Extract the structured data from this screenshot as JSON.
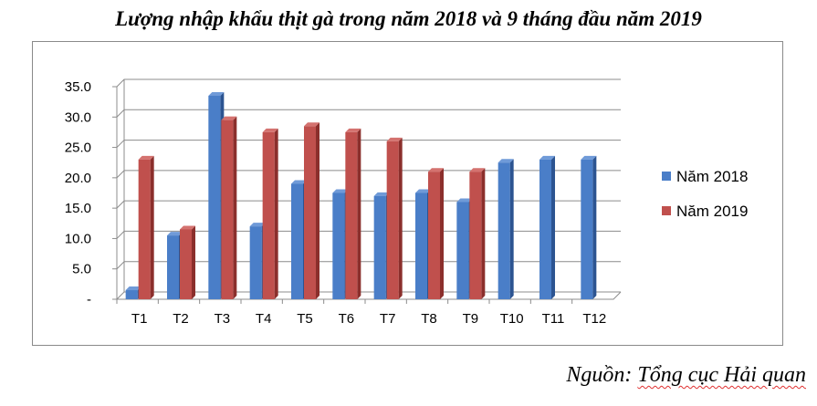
{
  "chart_data": {
    "type": "bar",
    "title": "Lượng nhập khẩu thịt gà trong năm 2018 và 9 tháng đầu năm 2019",
    "categories": [
      "T1",
      "T2",
      "T3",
      "T4",
      "T5",
      "T6",
      "T7",
      "T8",
      "T9",
      "T10",
      "T11",
      "T12"
    ],
    "series": [
      {
        "name": "Năm 2018",
        "color": "#4a7ec8",
        "values": [
          1.5,
          10.5,
          33.5,
          12.0,
          19.0,
          17.5,
          17.0,
          17.5,
          16.0,
          22.5,
          23.0,
          23.0
        ]
      },
      {
        "name": "Năm 2019",
        "color": "#c0504d",
        "values": [
          23.0,
          11.5,
          29.5,
          27.5,
          28.5,
          27.5,
          26.0,
          21.0,
          21.0,
          null,
          null,
          null
        ]
      }
    ],
    "yticks": [
      "-",
      "5.0",
      "10.0",
      "15.0",
      "20.0",
      "25.0",
      "30.0",
      "35.0"
    ],
    "ylim": [
      0,
      35
    ],
    "grid": true,
    "legend_position": "right"
  },
  "source": {
    "prefix": "Nguồn: ",
    "name": "Tổng cục Hải quan"
  }
}
